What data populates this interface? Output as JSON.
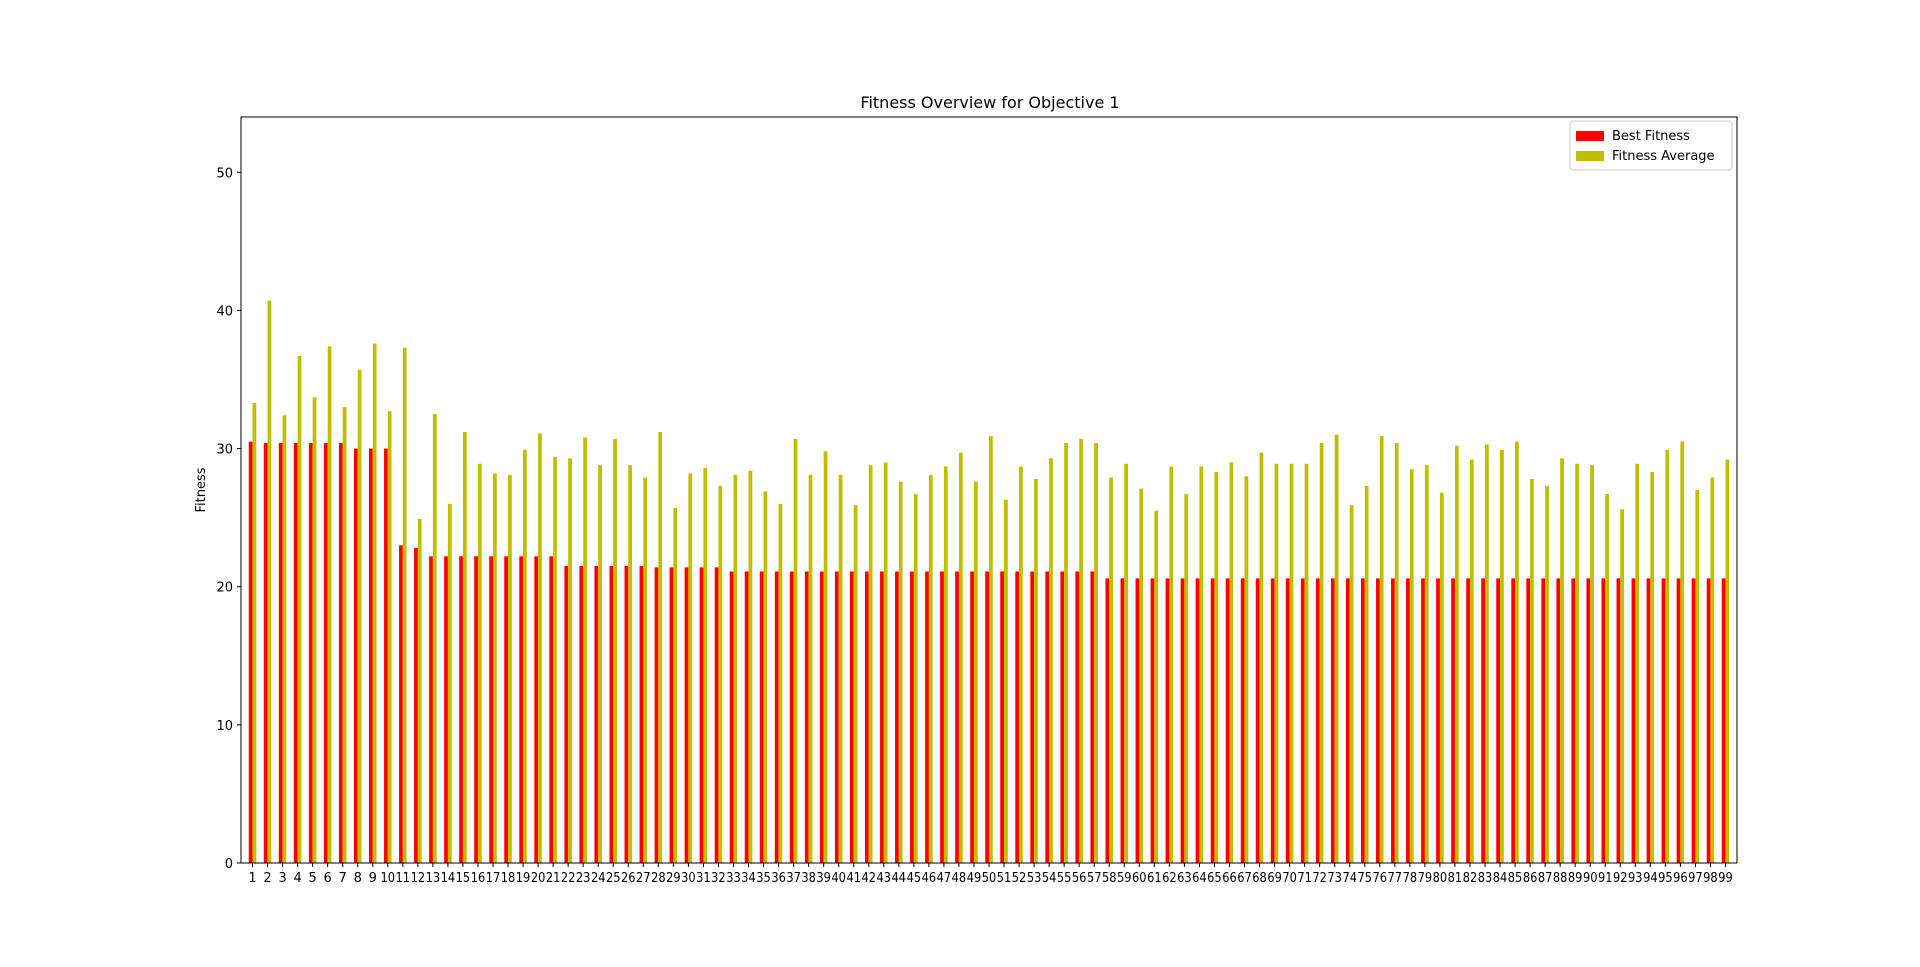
{
  "chart_data": {
    "type": "bar",
    "title": "Fitness Overview for Objective 1",
    "xlabel": "",
    "ylabel": "Fitness",
    "ylim": [
      0,
      54
    ],
    "yticks": [
      0,
      10,
      20,
      30,
      40,
      50
    ],
    "grid": false,
    "legend_position": "top-right",
    "colors": {
      "best": "#ff0000",
      "average": "#bfbf00"
    },
    "categories": [
      "1",
      "2",
      "3",
      "4",
      "5",
      "6",
      "7",
      "8",
      "9",
      "10",
      "11",
      "12",
      "13",
      "14",
      "15",
      "16",
      "17",
      "18",
      "19",
      "20",
      "21",
      "22",
      "23",
      "24",
      "25",
      "26",
      "27",
      "28",
      "29",
      "30",
      "31",
      "32",
      "33",
      "34",
      "35",
      "36",
      "37",
      "38",
      "39",
      "40",
      "41",
      "42",
      "43",
      "44",
      "45",
      "46",
      "47",
      "48",
      "49",
      "50",
      "51",
      "52",
      "53",
      "54",
      "55",
      "56",
      "57",
      "58",
      "59",
      "60",
      "61",
      "62",
      "63",
      "64",
      "65",
      "66",
      "67",
      "68",
      "69",
      "70",
      "71",
      "72",
      "73",
      "74",
      "75",
      "76",
      "77",
      "78",
      "79",
      "80",
      "81",
      "82",
      "83",
      "84",
      "85",
      "86",
      "87",
      "88",
      "89",
      "90",
      "91",
      "92",
      "93",
      "94",
      "95",
      "96",
      "97",
      "98",
      "99"
    ],
    "series": [
      {
        "name": "Best Fitness",
        "color": "#ff0000",
        "values": [
          30.5,
          30.4,
          30.4,
          30.4,
          30.4,
          30.4,
          30.4,
          30.0,
          30.0,
          30.0,
          23.0,
          22.8,
          22.2,
          22.2,
          22.2,
          22.2,
          22.2,
          22.2,
          22.2,
          22.2,
          22.2,
          21.5,
          21.5,
          21.5,
          21.5,
          21.5,
          21.5,
          21.4,
          21.4,
          21.4,
          21.4,
          21.4,
          21.1,
          21.1,
          21.1,
          21.1,
          21.1,
          21.1,
          21.1,
          21.1,
          21.1,
          21.1,
          21.1,
          21.1,
          21.1,
          21.1,
          21.1,
          21.1,
          21.1,
          21.1,
          21.1,
          21.1,
          21.1,
          21.1,
          21.1,
          21.1,
          21.1,
          20.6,
          20.6,
          20.6,
          20.6,
          20.6,
          20.6,
          20.6,
          20.6,
          20.6,
          20.6,
          20.6,
          20.6,
          20.6,
          20.6,
          20.6,
          20.6,
          20.6,
          20.6,
          20.6,
          20.6,
          20.6,
          20.6,
          20.6,
          20.6,
          20.6,
          20.6,
          20.6,
          20.6,
          20.6,
          20.6,
          20.6,
          20.6,
          20.6,
          20.6,
          20.6,
          20.6,
          20.6,
          20.6,
          20.6,
          20.6,
          20.6,
          20.6
        ]
      },
      {
        "name": "Fitness Average",
        "color": "#bfbf00",
        "values": [
          33.3,
          40.7,
          32.4,
          36.7,
          33.7,
          37.4,
          33.0,
          35.7,
          37.6,
          32.7,
          37.3,
          24.9,
          32.5,
          26.0,
          31.2,
          28.9,
          28.2,
          28.1,
          29.9,
          31.1,
          29.4,
          29.3,
          30.8,
          28.8,
          30.7,
          28.8,
          27.9,
          31.2,
          25.7,
          28.2,
          28.6,
          27.3,
          28.1,
          28.4,
          26.9,
          26.0,
          30.7,
          28.1,
          29.8,
          28.1,
          25.9,
          28.8,
          29.0,
          27.6,
          26.7,
          28.1,
          28.7,
          29.7,
          27.6,
          30.9,
          26.3,
          28.7,
          27.8,
          29.3,
          30.4,
          30.7,
          30.4,
          27.9,
          28.9,
          27.1,
          25.5,
          28.7,
          26.7,
          28.7,
          28.3,
          29.0,
          28.0,
          29.7,
          28.9,
          28.9,
          28.9,
          30.4,
          31.0,
          25.9,
          27.3,
          30.9,
          30.4,
          28.5,
          28.8,
          26.8,
          30.2,
          29.2,
          30.3,
          29.9,
          30.5,
          27.8,
          27.3,
          29.3,
          28.9,
          28.8,
          26.7,
          25.6,
          28.9,
          28.3,
          29.9,
          30.5,
          27.0,
          27.9,
          29.2
        ]
      }
    ]
  }
}
